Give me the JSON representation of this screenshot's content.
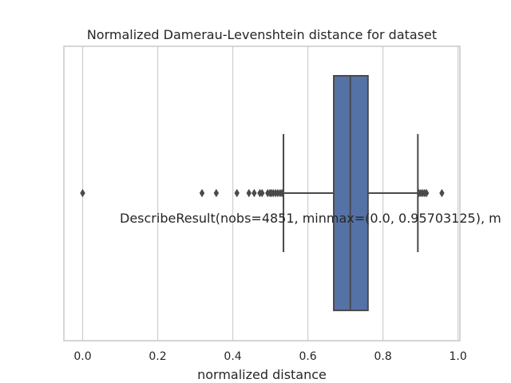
{
  "chart_data": {
    "type": "boxplot",
    "orientation": "horizontal",
    "title": "Normalized Damerau-Levenshtein distance for dataset",
    "xlabel": "normalized distance",
    "ylabel": "",
    "xlim": [
      -0.05,
      1.005
    ],
    "xticks": [
      0.0,
      0.2,
      0.4,
      0.6,
      0.8,
      1.0
    ],
    "xtick_labels": [
      "0.0",
      "0.2",
      "0.4",
      "0.6",
      "0.8",
      "1.0"
    ],
    "grid": "vertical",
    "box": {
      "q1": 0.669,
      "median": 0.713,
      "q3": 0.76,
      "whisker_low": 0.535,
      "whisker_high": 0.893
    },
    "outliers": [
      0.0,
      0.318,
      0.356,
      0.411,
      0.443,
      0.457,
      0.472,
      0.478,
      0.493,
      0.499,
      0.503,
      0.508,
      0.514,
      0.52,
      0.526,
      0.531,
      0.896,
      0.901,
      0.906,
      0.911,
      0.916,
      0.957
    ],
    "annotation": "DescribeResult(nobs=4851, minmax=(0.0, 0.95703125), m",
    "colors": {
      "box_fill": "#5572a6",
      "line": "#4a4a4a",
      "grid": "#d0d0d0",
      "frame": "#cccccc"
    }
  }
}
